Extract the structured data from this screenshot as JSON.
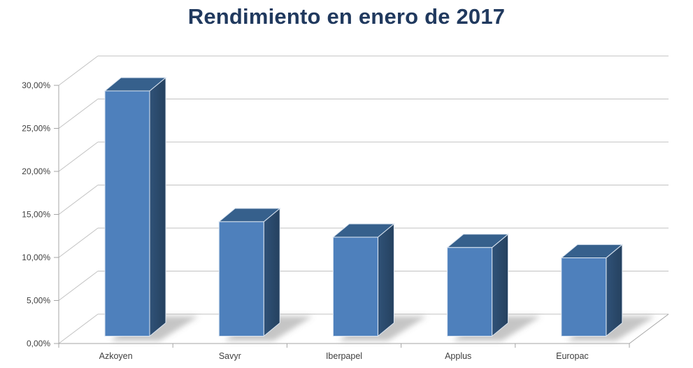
{
  "title": "Rendimiento en enero de 2017",
  "chart_data": {
    "type": "bar",
    "projection": "3d",
    "title": "Rendimiento en enero de 2017",
    "categories": [
      "Azkoyen",
      "Savyr",
      "Iberpapel",
      "Applus",
      "Europac"
    ],
    "values": [
      28.5,
      13.3,
      11.5,
      10.3,
      9.1
    ],
    "value_unit": "%",
    "xlabel": "",
    "ylabel": "",
    "ylim": [
      0,
      30
    ],
    "ytick_step": 5,
    "ytick_labels": [
      "0,00%",
      "5,00%",
      "10,00%",
      "15,00%",
      "20,00%",
      "25,00%",
      "30,00%"
    ],
    "grid": true,
    "legend": false,
    "data_labels": false,
    "colors": {
      "title": "#20395E",
      "bar_front": "#4E80BC",
      "bar_top": "#36608C",
      "bar_side_light": "#305278",
      "bar_side_dark": "#25415F",
      "edge_highlight": "#DCE6F2",
      "gridline": "#C2C2C2",
      "axis": "#A6A6A6",
      "tick_label": "#3F3F3F",
      "background": "#FFFFFF"
    }
  }
}
